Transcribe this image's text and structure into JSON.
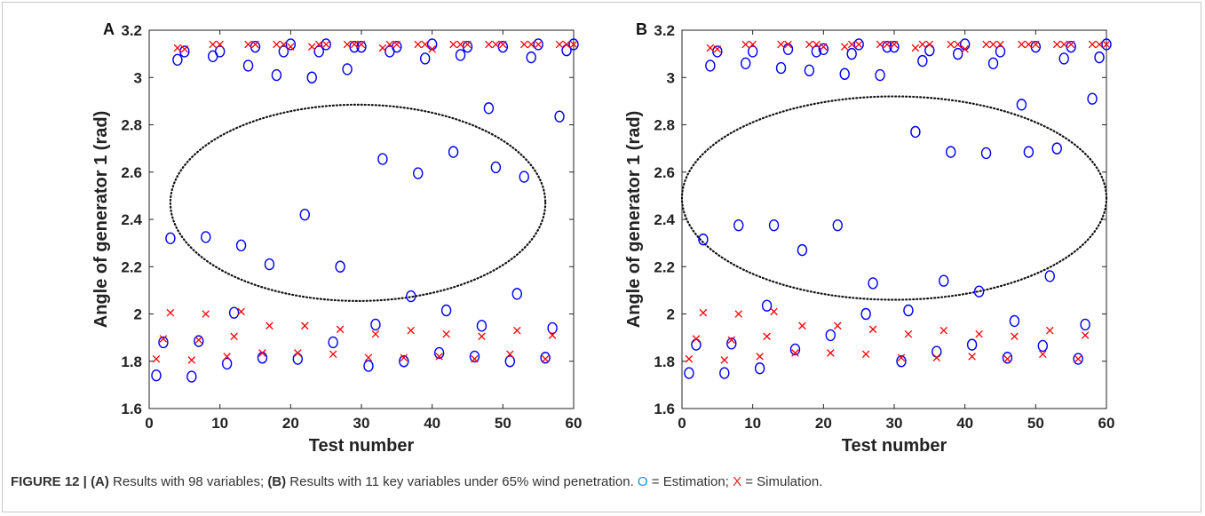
{
  "chart_data": [
    {
      "type": "scatter",
      "panel_label": "A",
      "xlabel": "Test number",
      "ylabel": "Angle of  generator 1 (rad)",
      "xlim": [
        0,
        60
      ],
      "ylim": [
        1.6,
        3.2
      ],
      "xticks": [
        "0",
        "10",
        "20",
        "30",
        "40",
        "50",
        "60"
      ],
      "yticks": [
        "1.6",
        "1.8",
        "2",
        "2.2",
        "2.4",
        "2.6",
        "2.8",
        "3",
        "3.2"
      ],
      "grid": false,
      "annotation": {
        "shape": "dotted ellipse",
        "center": [
          29.5,
          2.47
        ],
        "radius": [
          26.5,
          0.415
        ]
      },
      "series": [
        {
          "name": "Estimation",
          "marker": "o",
          "color": "#0000ff",
          "x": [
            1,
            2,
            3,
            4,
            5,
            6,
            7,
            8,
            9,
            10,
            11,
            12,
            13,
            14,
            15,
            16,
            17,
            18,
            19,
            20,
            21,
            22,
            23,
            24,
            25,
            26,
            27,
            28,
            29,
            30,
            31,
            32,
            33,
            34,
            35,
            36,
            37,
            38,
            39,
            40,
            41,
            42,
            43,
            44,
            45,
            46,
            47,
            48,
            49,
            50,
            51,
            52,
            53,
            54,
            55,
            56,
            57,
            58,
            59,
            60
          ],
          "y": [
            1.74,
            1.88,
            2.32,
            3.075,
            3.11,
            1.735,
            1.885,
            2.325,
            3.09,
            3.11,
            1.79,
            2.005,
            2.29,
            3.05,
            3.13,
            1.815,
            2.21,
            3.01,
            3.11,
            3.14,
            1.81,
            2.42,
            3.0,
            3.11,
            3.14,
            1.88,
            2.2,
            3.035,
            3.13,
            3.13,
            1.78,
            1.955,
            2.655,
            3.11,
            3.13,
            1.8,
            2.075,
            2.595,
            3.08,
            3.14,
            1.835,
            2.015,
            2.685,
            3.095,
            3.13,
            1.82,
            1.95,
            2.87,
            2.62,
            3.13,
            1.8,
            2.085,
            2.58,
            3.085,
            3.14,
            1.815,
            1.94,
            2.835,
            3.115,
            3.14
          ]
        },
        {
          "name": "Simulation",
          "marker": "x",
          "color": "#ff0000",
          "x": [
            1,
            2,
            3,
            4,
            5,
            6,
            7,
            8,
            9,
            10,
            11,
            12,
            13,
            14,
            15,
            16,
            17,
            18,
            19,
            20,
            21,
            22,
            23,
            24,
            25,
            26,
            27,
            28,
            29,
            30,
            31,
            32,
            33,
            34,
            35,
            36,
            37,
            38,
            39,
            40,
            41,
            42,
            43,
            44,
            45,
            46,
            47,
            48,
            49,
            50,
            51,
            52,
            53,
            54,
            55,
            56,
            57,
            58,
            59,
            60
          ],
          "y": [
            1.81,
            1.895,
            2.005,
            3.125,
            3.12,
            1.805,
            1.89,
            2.0,
            3.14,
            3.14,
            1.82,
            1.905,
            2.01,
            3.14,
            3.14,
            1.835,
            1.95,
            3.14,
            3.14,
            3.13,
            1.835,
            1.95,
            3.13,
            3.14,
            3.14,
            1.83,
            1.935,
            3.14,
            3.14,
            3.14,
            1.815,
            1.915,
            3.125,
            3.14,
            3.14,
            1.815,
            1.93,
            3.14,
            3.14,
            3.12,
            1.82,
            1.915,
            3.14,
            3.14,
            3.14,
            1.81,
            1.905,
            3.14,
            3.14,
            3.14,
            1.83,
            1.93,
            3.14,
            3.14,
            3.14,
            1.81,
            1.91,
            3.14,
            3.14,
            3.14
          ]
        }
      ]
    },
    {
      "type": "scatter",
      "panel_label": "B",
      "xlabel": "Test number",
      "ylabel": "Angle of generator 1 (rad)",
      "xlim": [
        0,
        60
      ],
      "ylim": [
        1.6,
        3.2
      ],
      "xticks": [
        "0",
        "10",
        "20",
        "30",
        "40",
        "50",
        "60"
      ],
      "yticks": [
        "1.6",
        "1.8",
        "2",
        "2.2",
        "2.4",
        "2.6",
        "2.8",
        "3",
        "3.2"
      ],
      "grid": false,
      "annotation": {
        "shape": "dotted ellipse",
        "center": [
          30,
          2.49
        ],
        "radius": [
          30,
          0.43
        ]
      },
      "series": [
        {
          "name": "Estimation",
          "marker": "o",
          "color": "#0000ff",
          "x": [
            1,
            2,
            3,
            4,
            5,
            6,
            7,
            8,
            9,
            10,
            11,
            12,
            13,
            14,
            15,
            16,
            17,
            18,
            19,
            20,
            21,
            22,
            23,
            24,
            25,
            26,
            27,
            28,
            29,
            30,
            31,
            32,
            33,
            34,
            35,
            36,
            37,
            38,
            39,
            40,
            41,
            42,
            43,
            44,
            45,
            46,
            47,
            48,
            49,
            50,
            51,
            52,
            53,
            54,
            55,
            56,
            57,
            58,
            59,
            60
          ],
          "y": [
            1.75,
            1.87,
            2.315,
            3.05,
            3.11,
            1.75,
            1.875,
            2.375,
            3.06,
            3.11,
            1.77,
            2.035,
            2.375,
            3.04,
            3.12,
            1.85,
            2.27,
            3.03,
            3.11,
            3.12,
            1.91,
            2.375,
            3.015,
            3.1,
            3.14,
            2.0,
            2.13,
            3.01,
            3.13,
            3.13,
            1.8,
            2.015,
            2.77,
            3.07,
            3.115,
            1.84,
            2.14,
            2.685,
            3.1,
            3.14,
            1.87,
            2.095,
            2.68,
            3.06,
            3.11,
            1.815,
            1.97,
            2.885,
            2.685,
            3.13,
            1.865,
            2.16,
            2.7,
            3.08,
            3.13,
            1.81,
            1.955,
            2.91,
            3.085,
            3.14
          ]
        },
        {
          "name": "Simulation",
          "marker": "x",
          "color": "#ff0000",
          "x": [
            1,
            2,
            3,
            4,
            5,
            6,
            7,
            8,
            9,
            10,
            11,
            12,
            13,
            14,
            15,
            16,
            17,
            18,
            19,
            20,
            21,
            22,
            23,
            24,
            25,
            26,
            27,
            28,
            29,
            30,
            31,
            32,
            33,
            34,
            35,
            36,
            37,
            38,
            39,
            40,
            41,
            42,
            43,
            44,
            45,
            46,
            47,
            48,
            49,
            50,
            51,
            52,
            53,
            54,
            55,
            56,
            57,
            58,
            59,
            60
          ],
          "y": [
            1.81,
            1.895,
            2.005,
            3.125,
            3.12,
            1.805,
            1.89,
            2.0,
            3.14,
            3.14,
            1.82,
            1.905,
            2.01,
            3.14,
            3.14,
            1.835,
            1.95,
            3.14,
            3.14,
            3.13,
            1.835,
            1.95,
            3.13,
            3.14,
            3.14,
            1.83,
            1.935,
            3.14,
            3.14,
            3.14,
            1.815,
            1.915,
            3.125,
            3.14,
            3.14,
            1.815,
            1.93,
            3.14,
            3.14,
            3.12,
            1.82,
            1.915,
            3.14,
            3.14,
            3.14,
            1.81,
            1.905,
            3.14,
            3.14,
            3.14,
            1.83,
            1.93,
            3.14,
            3.14,
            3.14,
            1.81,
            1.91,
            3.14,
            3.14,
            3.14
          ]
        }
      ]
    }
  ],
  "caption": {
    "figure_label": "FIGURE 12 |",
    "label_a": "(A)",
    "text_a": " Results with 98 variables; ",
    "label_b": "(B)",
    "text_b": " Results with 11 key variables under 65% wind penetration. ",
    "estimation_symbol": "O",
    "estimation_text": " = Estimation; ",
    "simulation_symbol": "X",
    "simulation_text": " = Simulation."
  }
}
